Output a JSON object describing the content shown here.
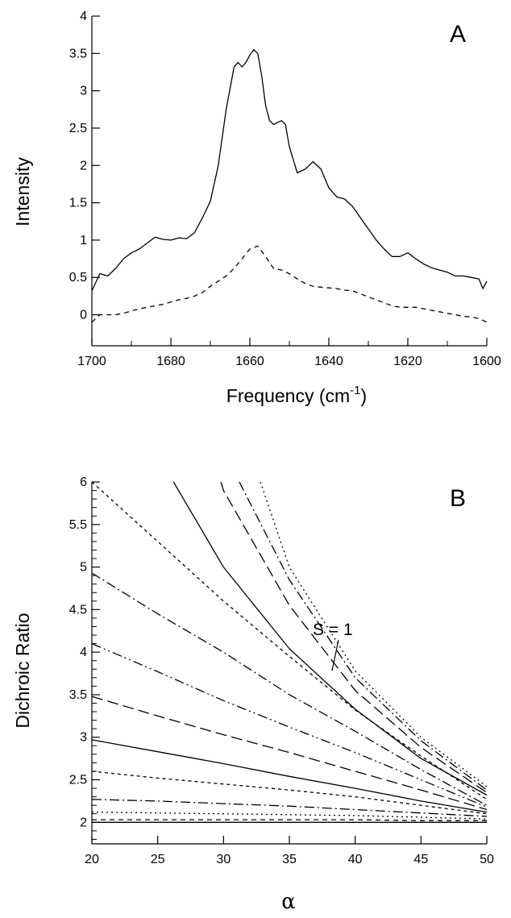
{
  "chart_data": [
    {
      "panel": "A",
      "type": "line",
      "title": "",
      "xlabel": "Frequency (cm",
      "xlabel_sup": "-1",
      "xlabel_end": ")",
      "ylabel": "Intensity",
      "xlim": [
        1700,
        1600
      ],
      "ylim": [
        -0.4,
        4
      ],
      "xticks": [
        1700,
        1680,
        1660,
        1640,
        1620,
        1600
      ],
      "xtick_labels": [
        "1700",
        "1680",
        "1660",
        "1640",
        "1620",
        "1600"
      ],
      "yticks": [
        0,
        0.5,
        1,
        1.5,
        2,
        2.5,
        3,
        3.5,
        4
      ],
      "ytick_labels": [
        "0",
        "0.5",
        "1",
        "1.5",
        "2",
        "2.5",
        "3",
        "3.5",
        "4"
      ],
      "series": [
        {
          "style": "solid",
          "x": [
            1700,
            1698,
            1696,
            1694,
            1692,
            1690,
            1688,
            1686,
            1684,
            1682,
            1680,
            1678,
            1676,
            1674,
            1672,
            1670,
            1668,
            1666,
            1664,
            1663,
            1662,
            1661,
            1660,
            1659,
            1658,
            1657,
            1656,
            1655,
            1654,
            1652,
            1651,
            1650,
            1648,
            1646,
            1644,
            1642,
            1640,
            1638,
            1636,
            1634,
            1632,
            1630,
            1628,
            1626,
            1624,
            1622,
            1620,
            1618,
            1616,
            1614,
            1612,
            1610,
            1608,
            1606,
            1604,
            1602,
            1601,
            1600
          ],
          "y": [
            0.32,
            0.55,
            0.52,
            0.62,
            0.75,
            0.83,
            0.88,
            0.96,
            1.04,
            1.01,
            1.0,
            1.03,
            1.02,
            1.1,
            1.3,
            1.52,
            2.0,
            2.75,
            3.32,
            3.38,
            3.32,
            3.38,
            3.48,
            3.55,
            3.5,
            3.2,
            2.8,
            2.6,
            2.55,
            2.6,
            2.55,
            2.25,
            1.9,
            1.95,
            2.05,
            1.95,
            1.7,
            1.58,
            1.55,
            1.45,
            1.3,
            1.15,
            1.0,
            0.88,
            0.78,
            0.78,
            0.83,
            0.75,
            0.68,
            0.63,
            0.6,
            0.57,
            0.52,
            0.52,
            0.5,
            0.48,
            0.35,
            0.45
          ]
        },
        {
          "style": "dashed",
          "x": [
            1700,
            1698,
            1696,
            1694,
            1692,
            1690,
            1688,
            1686,
            1684,
            1682,
            1680,
            1678,
            1676,
            1674,
            1672,
            1670,
            1668,
            1666,
            1664,
            1662,
            1660,
            1658,
            1656,
            1654,
            1652,
            1650,
            1648,
            1646,
            1644,
            1642,
            1640,
            1638,
            1636,
            1634,
            1632,
            1630,
            1628,
            1626,
            1624,
            1622,
            1620,
            1618,
            1616,
            1614,
            1612,
            1610,
            1608,
            1606,
            1604,
            1602,
            1600
          ],
          "y": [
            -0.1,
            0.0,
            0.0,
            0.0,
            0.02,
            0.05,
            0.08,
            0.1,
            0.12,
            0.14,
            0.17,
            0.2,
            0.22,
            0.25,
            0.3,
            0.38,
            0.45,
            0.52,
            0.62,
            0.75,
            0.88,
            0.92,
            0.78,
            0.62,
            0.6,
            0.55,
            0.48,
            0.42,
            0.38,
            0.37,
            0.36,
            0.35,
            0.33,
            0.32,
            0.28,
            0.24,
            0.2,
            0.16,
            0.12,
            0.1,
            0.1,
            0.1,
            0.08,
            0.06,
            0.04,
            0.02,
            0.0,
            -0.02,
            -0.03,
            -0.05,
            -0.1
          ]
        }
      ]
    },
    {
      "panel": "B",
      "type": "line",
      "title": "",
      "xlabel": "α",
      "ylabel": "Dichroic Ratio",
      "xlim": [
        20,
        50
      ],
      "ylim": [
        1.75,
        6
      ],
      "xticks": [
        20,
        25,
        30,
        35,
        40,
        45,
        50
      ],
      "xtick_labels": [
        "20",
        "25",
        "30",
        "35",
        "40",
        "45",
        "50"
      ],
      "yticks": [
        2,
        2.5,
        3,
        3.5,
        4,
        4.5,
        5,
        5.5,
        6
      ],
      "ytick_labels": [
        "2",
        "2.5",
        "3",
        "3.5",
        "4",
        "4.5",
        "5",
        "5.5",
        "6"
      ],
      "annotation": "S = 1",
      "x": [
        20,
        25,
        30,
        35,
        40,
        45,
        50
      ],
      "series": [
        {
          "style": "solid",
          "values": [
            2.0,
            2.0,
            2.0,
            2.0,
            2.0,
            2.0,
            2.0
          ]
        },
        {
          "style": "dashed",
          "values": [
            2.03,
            2.03,
            2.03,
            2.03,
            2.03,
            2.02,
            2.02
          ]
        },
        {
          "style": "dotted",
          "values": [
            2.12,
            2.11,
            2.1,
            2.09,
            2.08,
            2.06,
            2.04
          ]
        },
        {
          "style": "dashdot",
          "values": [
            2.27,
            2.25,
            2.22,
            2.19,
            2.15,
            2.11,
            2.07
          ]
        },
        {
          "style": "dashed-short",
          "values": [
            2.6,
            2.52,
            2.45,
            2.38,
            2.3,
            2.2,
            2.1
          ]
        },
        {
          "style": "solid",
          "values": [
            2.97,
            2.83,
            2.69,
            2.54,
            2.4,
            2.25,
            2.12
          ]
        },
        {
          "style": "dashed-long",
          "values": [
            3.48,
            3.25,
            3.03,
            2.82,
            2.6,
            2.38,
            2.15
          ]
        },
        {
          "style": "dashdotdot",
          "values": [
            4.1,
            3.77,
            3.43,
            3.12,
            2.82,
            2.5,
            2.18
          ]
        },
        {
          "style": "dashdot",
          "values": [
            4.93,
            4.45,
            4.0,
            3.5,
            3.07,
            2.62,
            2.2
          ]
        },
        {
          "style": "dashed-short",
          "values": [
            6.0,
            5.3,
            4.6,
            3.95,
            3.32,
            2.78,
            2.27
          ]
        },
        {
          "style": "solid",
          "x": [
            26.2,
            30,
            35,
            40,
            45,
            50
          ],
          "values": [
            6.0,
            5.0,
            4.04,
            3.33,
            2.75,
            2.32
          ]
        },
        {
          "style": "dashed-long",
          "x": [
            29.8,
            30,
            35,
            40,
            45,
            50
          ],
          "values": [
            6.0,
            5.9,
            4.55,
            3.55,
            2.88,
            2.35
          ]
        },
        {
          "style": "dashdot",
          "x": [
            31.2,
            35,
            40,
            45,
            50
          ],
          "values": [
            6.0,
            4.85,
            3.7,
            2.96,
            2.38
          ]
        },
        {
          "style": "dotted",
          "x": [
            32.8,
            35,
            40,
            45,
            50
          ],
          "values": [
            6.0,
            5.0,
            3.78,
            3.0,
            2.42
          ]
        }
      ]
    }
  ]
}
